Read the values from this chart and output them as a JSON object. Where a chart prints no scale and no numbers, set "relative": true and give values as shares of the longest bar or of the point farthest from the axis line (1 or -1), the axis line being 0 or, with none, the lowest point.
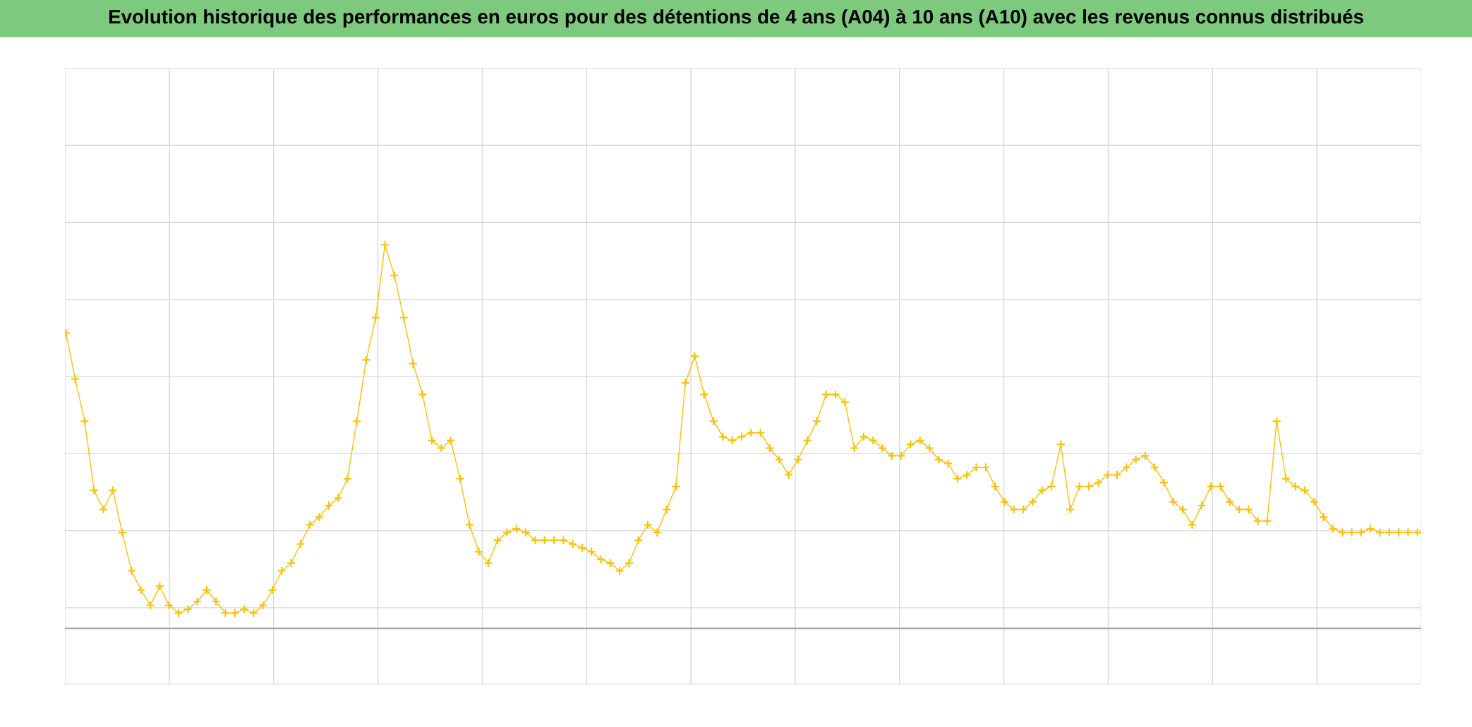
{
  "chart_data": {
    "type": "line",
    "title": "Evolution historique des performances en euros pour des détentions de 4 ans (A04) à 10 ans (A10) avec les revenus connus distribués",
    "relative": true,
    "marker": "cross",
    "grid": true,
    "categories": [
      null,
      null,
      null,
      null,
      null,
      null,
      null,
      null,
      null,
      null,
      null,
      null,
      null,
      null,
      null,
      null,
      null,
      null,
      null,
      null,
      null,
      null,
      null,
      null,
      null,
      null,
      null,
      null,
      null,
      null,
      null,
      null,
      null,
      null,
      null,
      null,
      null,
      null,
      null,
      null,
      null,
      null,
      null,
      null,
      null,
      null,
      null,
      null,
      null,
      null,
      null,
      null,
      null,
      null,
      null,
      null,
      null,
      null,
      null,
      null,
      null,
      null,
      null,
      null,
      null,
      null,
      null,
      null,
      null,
      null,
      null,
      null,
      null,
      null,
      null,
      null,
      null,
      null,
      null,
      null,
      null,
      null,
      null,
      null,
      null,
      null,
      null,
      null,
      null,
      null,
      null,
      null,
      null,
      null,
      null,
      null,
      null,
      null,
      null,
      null,
      null,
      null,
      null,
      null,
      null,
      null,
      null,
      null,
      null,
      null,
      null,
      null,
      null,
      null,
      null,
      null,
      null,
      null,
      null,
      null,
      null,
      null,
      null,
      null,
      null,
      null,
      null,
      null,
      null,
      null,
      null,
      null,
      null,
      null,
      null,
      null,
      null,
      null,
      null,
      null,
      null,
      null,
      null,
      null,
      null
    ],
    "series": [
      {
        "color": "#ffc000",
        "values": [
          0.77,
          0.65,
          0.54,
          0.36,
          0.31,
          0.36,
          0.25,
          0.15,
          0.1,
          0.06,
          0.11,
          0.06,
          0.04,
          0.05,
          0.07,
          0.1,
          0.07,
          0.04,
          0.04,
          0.05,
          0.04,
          0.06,
          0.1,
          0.15,
          0.17,
          0.22,
          0.27,
          0.29,
          0.32,
          0.34,
          0.39,
          0.54,
          0.7,
          0.81,
          1.0,
          0.92,
          0.81,
          0.69,
          0.61,
          0.49,
          0.47,
          0.49,
          0.39,
          0.27,
          0.2,
          0.17,
          0.23,
          0.25,
          0.26,
          0.25,
          0.23,
          0.23,
          0.23,
          0.23,
          0.22,
          0.21,
          0.2,
          0.18,
          0.17,
          0.15,
          0.17,
          0.23,
          0.27,
          0.25,
          0.31,
          0.37,
          0.64,
          0.71,
          0.61,
          0.54,
          0.5,
          0.49,
          0.5,
          0.51,
          0.51,
          0.47,
          0.44,
          0.4,
          0.44,
          0.49,
          0.54,
          0.61,
          0.61,
          0.59,
          0.47,
          0.5,
          0.49,
          0.47,
          0.45,
          0.45,
          0.48,
          0.49,
          0.47,
          0.44,
          0.43,
          0.39,
          0.4,
          0.42,
          0.42,
          0.37,
          0.33,
          0.31,
          0.31,
          0.33,
          0.36,
          0.37,
          0.48,
          0.31,
          0.37,
          0.37,
          0.38,
          0.4,
          0.4,
          0.42,
          0.44,
          0.45,
          0.42,
          0.38,
          0.33,
          0.31,
          0.27,
          0.32,
          0.37,
          0.37,
          0.33,
          0.31,
          0.31,
          0.28,
          0.28,
          0.54,
          0.39,
          0.37,
          0.36,
          0.33,
          0.29,
          0.26,
          0.25,
          0.25,
          0.25,
          0.26,
          0.25,
          0.25,
          0.25,
          0.25,
          0.25
        ]
      }
    ]
  }
}
